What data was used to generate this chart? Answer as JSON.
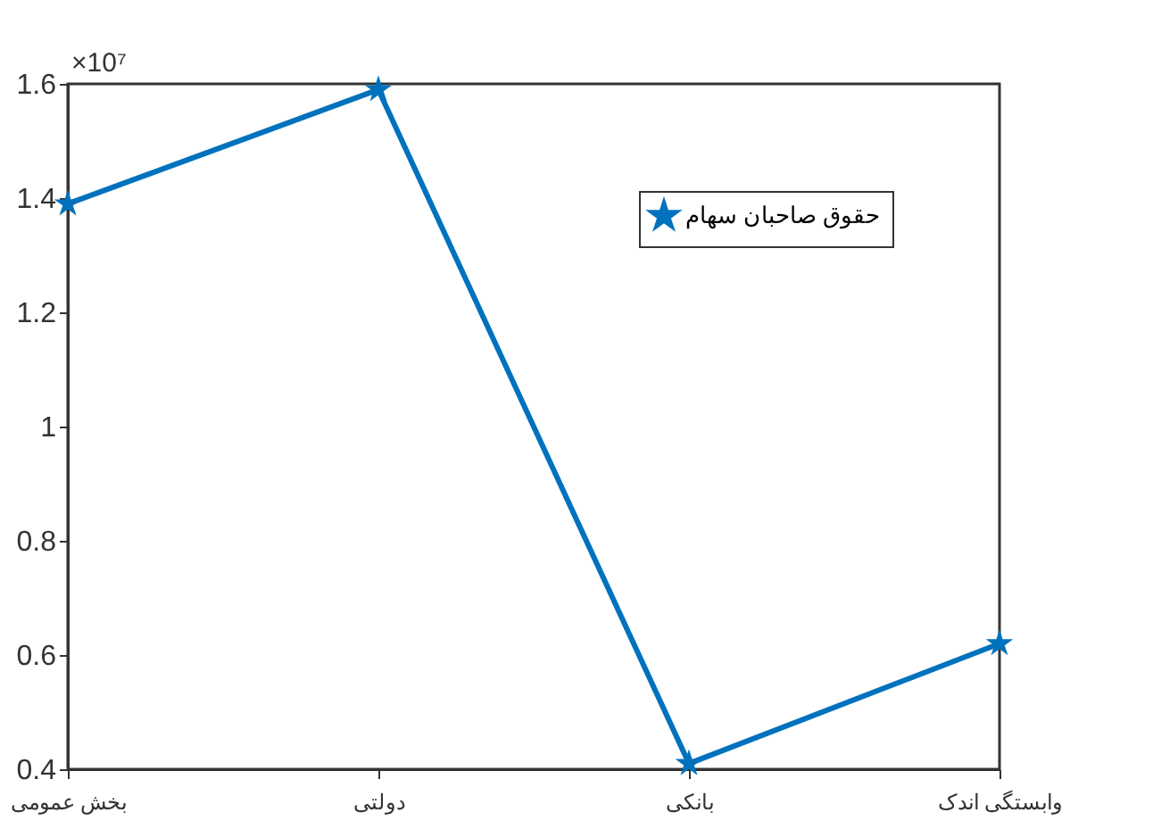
{
  "chart_data": {
    "type": "line",
    "categories": [
      "بخش عمومی",
      "دولتی",
      "بانکی",
      "وابستگی اندک"
    ],
    "series": [
      {
        "name": "حقوق صاحبان سهام",
        "color": "#0072bd",
        "values": [
          1.39,
          1.59,
          0.41,
          0.62
        ]
      }
    ],
    "ylim": [
      0.4,
      1.6
    ],
    "yticks": [
      0.4,
      0.6,
      0.8,
      1,
      1.2,
      1.4,
      1.6
    ],
    "annotations": [
      "×10⁷"
    ],
    "marker": "star",
    "line_style": "solid",
    "legend": "top right",
    "grid": false
  }
}
